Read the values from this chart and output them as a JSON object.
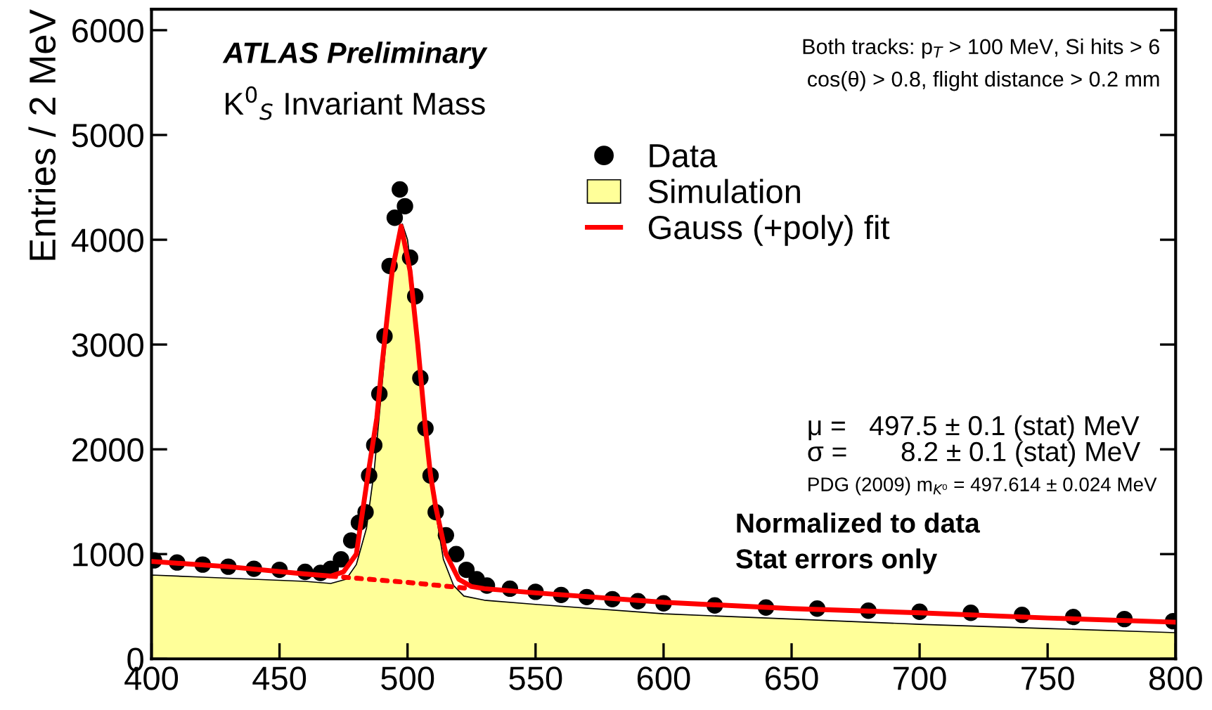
{
  "chart_data": {
    "type": "scatter",
    "ylabel": "Entries / 2 MeV",
    "xlim": [
      400,
      800
    ],
    "ylim": [
      0,
      6200
    ],
    "xticks": [
      400,
      450,
      500,
      550,
      600,
      650,
      700,
      750,
      800
    ],
    "yticks": [
      0,
      1000,
      2000,
      3000,
      4000,
      5000,
      6000
    ],
    "legend": "top right",
    "annotations": [
      "ATLAS Preliminary",
      "K$^{0}$$_{S}$ Invariant Mass",
      "Both tracks: p$_{T}$ > 100 MeV, Si hits > 6",
      "cos(θ) > 0.8, flight distance > 0.2 mm",
      "μ =   497.5 ± 0.1 (stat) MeV",
      "σ =       8.2 ± 0.1 (stat) MeV",
      "PDG (2009) m$_{K⁰}$ = 497.614 ± 0.024 MeV",
      "Normalized to data",
      "Stat errors only"
    ],
    "series": [
      {
        "name": "Data",
        "color": "#000000",
        "marker": "circle",
        "x": [
          401,
          410,
          420,
          430,
          440,
          450,
          460,
          466,
          470,
          474,
          478,
          481,
          483.6,
          485,
          487,
          489,
          491,
          493,
          495,
          497,
          499,
          501,
          503,
          505,
          507,
          509,
          511,
          515,
          519,
          523,
          527,
          531,
          540,
          550,
          560,
          570,
          580,
          590,
          600,
          620,
          640,
          660,
          680,
          700,
          720,
          740,
          760,
          780,
          799
        ],
        "values": [
          940,
          920,
          900,
          880,
          860,
          850,
          830,
          820,
          860,
          950,
          1130,
          1300,
          1400,
          1750,
          2040,
          2530,
          3080,
          3750,
          4210,
          4480,
          4320,
          3830,
          3460,
          2680,
          2200,
          1750,
          1400,
          1180,
          1000,
          850,
          760,
          700,
          670,
          640,
          610,
          590,
          570,
          550,
          530,
          510,
          490,
          480,
          460,
          450,
          440,
          420,
          400,
          380,
          360
        ]
      },
      {
        "name": "Simulation",
        "type": "area",
        "color": "#ffff99",
        "x": [
          400,
          420,
          440,
          460,
          470,
          476,
          480,
          484,
          487,
          490,
          493,
          496,
          498,
          500,
          502,
          505,
          508,
          511,
          514,
          518,
          522,
          530,
          550,
          600,
          650,
          700,
          750,
          800
        ],
        "values": [
          800,
          780,
          760,
          740,
          720,
          760,
          900,
          1250,
          1800,
          2600,
          3400,
          4000,
          4150,
          4000,
          3600,
          2800,
          2000,
          1400,
          950,
          700,
          600,
          560,
          520,
          430,
          380,
          330,
          290,
          250
        ]
      },
      {
        "name": "Gauss (+poly) fit",
        "type": "line",
        "color": "#ff0000",
        "line_style": "solid",
        "x": [
          400,
          430,
          460,
          470,
          475,
          480,
          484.5,
          488,
          490,
          494,
          497.5,
          501,
          504,
          507,
          509,
          511,
          515,
          520,
          525,
          530,
          550,
          600,
          650,
          700,
          750,
          800
        ],
        "values": [
          930,
          880,
          810,
          790,
          830,
          1000,
          1750,
          2300,
          2800,
          3700,
          4130,
          3700,
          3000,
          2200,
          1750,
          1450,
          1000,
          760,
          690,
          670,
          630,
          540,
          480,
          440,
          390,
          350
        ]
      },
      {
        "type": "line",
        "color": "#ff0000",
        "line_style": "dotted",
        "x": [
          470,
          500,
          525
        ],
        "values": [
          790,
          730,
          670
        ]
      }
    ]
  }
}
